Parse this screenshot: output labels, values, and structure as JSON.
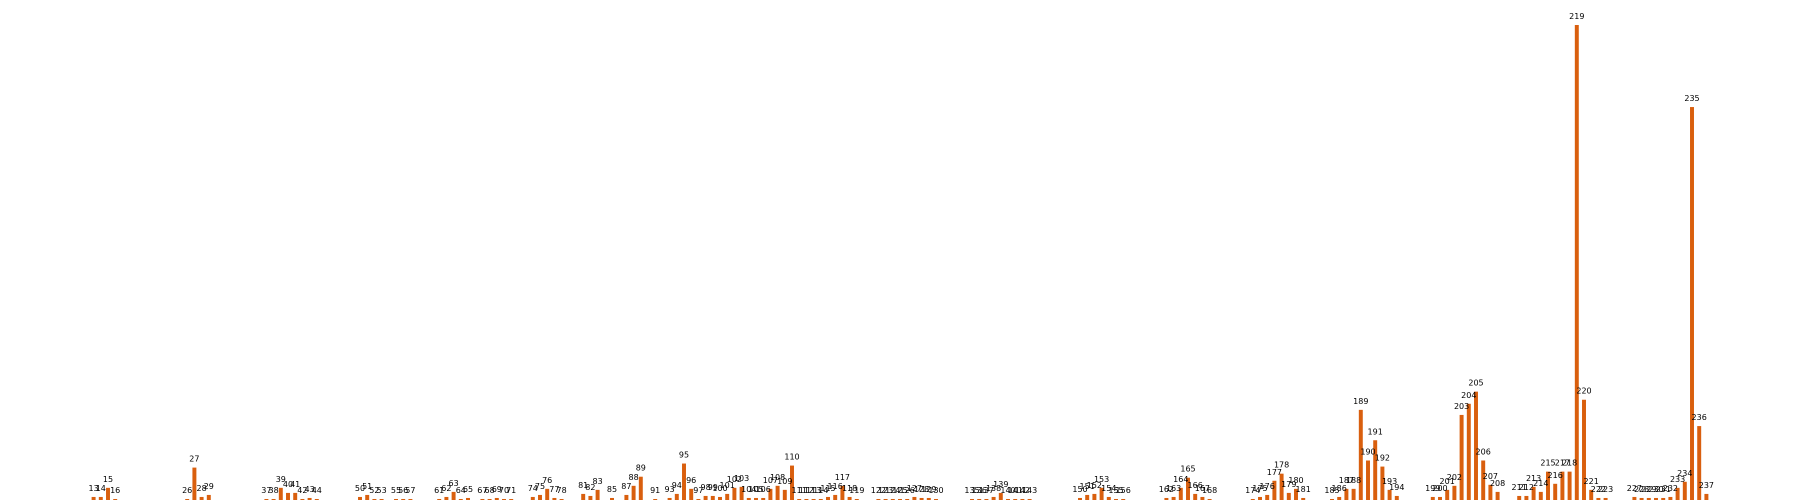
{
  "colors": {
    "bar": "#d95f0e",
    "background": "#ffffff"
  },
  "chart_data": {
    "type": "bar",
    "title": "",
    "xlabel": "",
    "ylabel": "",
    "axes_visible": false,
    "grid": false,
    "ylim": [
      0,
      470
    ],
    "x_range": [
      0,
      250
    ],
    "points": [
      {
        "x": 13,
        "label": "13",
        "value": 3
      },
      {
        "x": 14,
        "label": "14",
        "value": 3
      },
      {
        "x": 15,
        "label": "15",
        "value": 12
      },
      {
        "x": 16,
        "label": "16",
        "value": 1
      },
      {
        "x": 26,
        "label": "26",
        "value": 1
      },
      {
        "x": 27,
        "label": "27",
        "value": 32
      },
      {
        "x": 28,
        "label": "28",
        "value": 3
      },
      {
        "x": 29,
        "label": "29",
        "value": 5
      },
      {
        "x": 37,
        "label": "37",
        "value": 1
      },
      {
        "x": 38,
        "label": "38",
        "value": 1
      },
      {
        "x": 39,
        "label": "39",
        "value": 12
      },
      {
        "x": 40,
        "label": "40",
        "value": 7
      },
      {
        "x": 41,
        "label": "41",
        "value": 7
      },
      {
        "x": 42,
        "label": "42",
        "value": 1
      },
      {
        "x": 43,
        "label": "43",
        "value": 2
      },
      {
        "x": 44,
        "label": "44",
        "value": 1
      },
      {
        "x": 50,
        "label": "50",
        "value": 3
      },
      {
        "x": 51,
        "label": "51",
        "value": 5
      },
      {
        "x": 52,
        "label": "52",
        "value": 1
      },
      {
        "x": 53,
        "label": "53",
        "value": 1
      },
      {
        "x": 55,
        "label": "55",
        "value": 1
      },
      {
        "x": 56,
        "label": "56",
        "value": 1
      },
      {
        "x": 57,
        "label": "57",
        "value": 1
      },
      {
        "x": 61,
        "label": "61",
        "value": 1
      },
      {
        "x": 62,
        "label": "62",
        "value": 3
      },
      {
        "x": 63,
        "label": "63",
        "value": 8
      },
      {
        "x": 64,
        "label": "64",
        "value": 1
      },
      {
        "x": 65,
        "label": "65",
        "value": 2
      },
      {
        "x": 67,
        "label": "67",
        "value": 1
      },
      {
        "x": 68,
        "label": "68",
        "value": 1
      },
      {
        "x": 69,
        "label": "69",
        "value": 2
      },
      {
        "x": 70,
        "label": "70",
        "value": 1
      },
      {
        "x": 71,
        "label": "71",
        "value": 1
      },
      {
        "x": 74,
        "label": "74",
        "value": 3
      },
      {
        "x": 75,
        "label": "75",
        "value": 5
      },
      {
        "x": 76,
        "label": "76",
        "value": 11
      },
      {
        "x": 77,
        "label": "77",
        "value": 2
      },
      {
        "x": 78,
        "label": "78",
        "value": 1
      },
      {
        "x": 81,
        "label": "81",
        "value": 6
      },
      {
        "x": 82,
        "label": "82",
        "value": 4
      },
      {
        "x": 83,
        "label": "83",
        "value": 10
      },
      {
        "x": 85,
        "label": "85",
        "value": 2
      },
      {
        "x": 87,
        "label": "87",
        "value": 5
      },
      {
        "x": 88,
        "label": "88",
        "value": 14
      },
      {
        "x": 89,
        "label": "89",
        "value": 23
      },
      {
        "x": 91,
        "label": "91",
        "value": 1
      },
      {
        "x": 93,
        "label": "93",
        "value": 2
      },
      {
        "x": 94,
        "label": "94",
        "value": 6
      },
      {
        "x": 95,
        "label": "95",
        "value": 36
      },
      {
        "x": 96,
        "label": "96",
        "value": 11
      },
      {
        "x": 97,
        "label": "97",
        "value": 1
      },
      {
        "x": 98,
        "label": "98",
        "value": 4
      },
      {
        "x": 99,
        "label": "99",
        "value": 4
      },
      {
        "x": 100,
        "label": "100",
        "value": 3
      },
      {
        "x": 101,
        "label": "101",
        "value": 6
      },
      {
        "x": 102,
        "label": "102",
        "value": 12
      },
      {
        "x": 103,
        "label": "103",
        "value": 13
      },
      {
        "x": 104,
        "label": "104",
        "value": 2
      },
      {
        "x": 105,
        "label": "105",
        "value": 2
      },
      {
        "x": 106,
        "label": "106",
        "value": 2
      },
      {
        "x": 107,
        "label": "107",
        "value": 11
      },
      {
        "x": 108,
        "label": "108",
        "value": 14
      },
      {
        "x": 109,
        "label": "109",
        "value": 10
      },
      {
        "x": 110,
        "label": "110",
        "value": 34
      },
      {
        "x": 111,
        "label": "111",
        "value": 1
      },
      {
        "x": 112,
        "label": "112",
        "value": 1
      },
      {
        "x": 113,
        "label": "113",
        "value": 1
      },
      {
        "x": 114,
        "label": "114",
        "value": 1
      },
      {
        "x": 115,
        "label": "115",
        "value": 3
      },
      {
        "x": 116,
        "label": "116",
        "value": 5
      },
      {
        "x": 117,
        "label": "117",
        "value": 14
      },
      {
        "x": 118,
        "label": "118",
        "value": 3
      },
      {
        "x": 119,
        "label": "119",
        "value": 1
      },
      {
        "x": 122,
        "label": "122",
        "value": 1
      },
      {
        "x": 123,
        "label": "123",
        "value": 1
      },
      {
        "x": 124,
        "label": "124",
        "value": 1
      },
      {
        "x": 125,
        "label": "125",
        "value": 1
      },
      {
        "x": 126,
        "label": "126",
        "value": 1
      },
      {
        "x": 127,
        "label": "127",
        "value": 3
      },
      {
        "x": 128,
        "label": "128",
        "value": 2
      },
      {
        "x": 129,
        "label": "129",
        "value": 2
      },
      {
        "x": 130,
        "label": "130",
        "value": 1
      },
      {
        "x": 135,
        "label": "135",
        "value": 1
      },
      {
        "x": 136,
        "label": "136",
        "value": 1
      },
      {
        "x": 137,
        "label": "137",
        "value": 1
      },
      {
        "x": 138,
        "label": "138",
        "value": 3
      },
      {
        "x": 139,
        "label": "139",
        "value": 7
      },
      {
        "x": 140,
        "label": "140",
        "value": 1
      },
      {
        "x": 141,
        "label": "141",
        "value": 1
      },
      {
        "x": 142,
        "label": "142",
        "value": 1
      },
      {
        "x": 143,
        "label": "143",
        "value": 1
      },
      {
        "x": 150,
        "label": "150",
        "value": 2
      },
      {
        "x": 151,
        "label": "151",
        "value": 5
      },
      {
        "x": 152,
        "label": "152",
        "value": 6
      },
      {
        "x": 153,
        "label": "153",
        "value": 12
      },
      {
        "x": 154,
        "label": "154",
        "value": 3
      },
      {
        "x": 155,
        "label": "155",
        "value": 1
      },
      {
        "x": 156,
        "label": "156",
        "value": 1
      },
      {
        "x": 162,
        "label": "162",
        "value": 2
      },
      {
        "x": 163,
        "label": "163",
        "value": 3
      },
      {
        "x": 164,
        "label": "164",
        "value": 12
      },
      {
        "x": 165,
        "label": "165",
        "value": 22
      },
      {
        "x": 166,
        "label": "166",
        "value": 6
      },
      {
        "x": 167,
        "label": "167",
        "value": 3
      },
      {
        "x": 168,
        "label": "168",
        "value": 1
      },
      {
        "x": 174,
        "label": "174",
        "value": 1
      },
      {
        "x": 175,
        "label": "175",
        "value": 3
      },
      {
        "x": 176,
        "label": "176",
        "value": 5
      },
      {
        "x": 177,
        "label": "177",
        "value": 19
      },
      {
        "x": 178,
        "label": "178",
        "value": 26
      },
      {
        "x": 179,
        "label": "179",
        "value": 7
      },
      {
        "x": 180,
        "label": "180",
        "value": 11
      },
      {
        "x": 181,
        "label": "181",
        "value": 2
      },
      {
        "x": 185,
        "label": "185",
        "value": 1
      },
      {
        "x": 186,
        "label": "186",
        "value": 3
      },
      {
        "x": 187,
        "label": "187",
        "value": 11
      },
      {
        "x": 188,
        "label": "188",
        "value": 11
      },
      {
        "x": 189,
        "label": "189",
        "value": 89
      },
      {
        "x": 190,
        "label": "190",
        "value": 39
      },
      {
        "x": 191,
        "label": "191",
        "value": 59
      },
      {
        "x": 192,
        "label": "192",
        "value": 33
      },
      {
        "x": 193,
        "label": "193",
        "value": 10
      },
      {
        "x": 194,
        "label": "194",
        "value": 4
      },
      {
        "x": 199,
        "label": "199",
        "value": 3
      },
      {
        "x": 200,
        "label": "200",
        "value": 3
      },
      {
        "x": 201,
        "label": "201",
        "value": 10
      },
      {
        "x": 202,
        "label": "202",
        "value": 14
      },
      {
        "x": 203,
        "label": "203",
        "value": 84
      },
      {
        "x": 204,
        "label": "204",
        "value": 95
      },
      {
        "x": 205,
        "label": "205",
        "value": 107
      },
      {
        "x": 206,
        "label": "206",
        "value": 39
      },
      {
        "x": 207,
        "label": "207",
        "value": 15
      },
      {
        "x": 208,
        "label": "208",
        "value": 8
      },
      {
        "x": 211,
        "label": "211",
        "value": 4
      },
      {
        "x": 212,
        "label": "212",
        "value": 4
      },
      {
        "x": 213,
        "label": "213",
        "value": 13
      },
      {
        "x": 214,
        "label": "214",
        "value": 8
      },
      {
        "x": 215,
        "label": "215",
        "value": 28
      },
      {
        "x": 216,
        "label": "216",
        "value": 16
      },
      {
        "x": 217,
        "label": "217",
        "value": 28
      },
      {
        "x": 218,
        "label": "218",
        "value": 28
      },
      {
        "x": 219,
        "label": "219",
        "value": 469
      },
      {
        "x": 220,
        "label": "220",
        "value": 99
      },
      {
        "x": 221,
        "label": "221",
        "value": 10
      },
      {
        "x": 222,
        "label": "222",
        "value": 2
      },
      {
        "x": 223,
        "label": "223",
        "value": 2
      },
      {
        "x": 227,
        "label": "227",
        "value": 3
      },
      {
        "x": 228,
        "label": "228",
        "value": 2
      },
      {
        "x": 229,
        "label": "229",
        "value": 2
      },
      {
        "x": 230,
        "label": "230",
        "value": 2
      },
      {
        "x": 231,
        "label": "231",
        "value": 2
      },
      {
        "x": 232,
        "label": "232",
        "value": 3
      },
      {
        "x": 233,
        "label": "233",
        "value": 12
      },
      {
        "x": 234,
        "label": "234",
        "value": 18
      },
      {
        "x": 235,
        "label": "235",
        "value": 388
      },
      {
        "x": 236,
        "label": "236",
        "value": 73
      },
      {
        "x": 237,
        "label": "237",
        "value": 6
      }
    ]
  }
}
